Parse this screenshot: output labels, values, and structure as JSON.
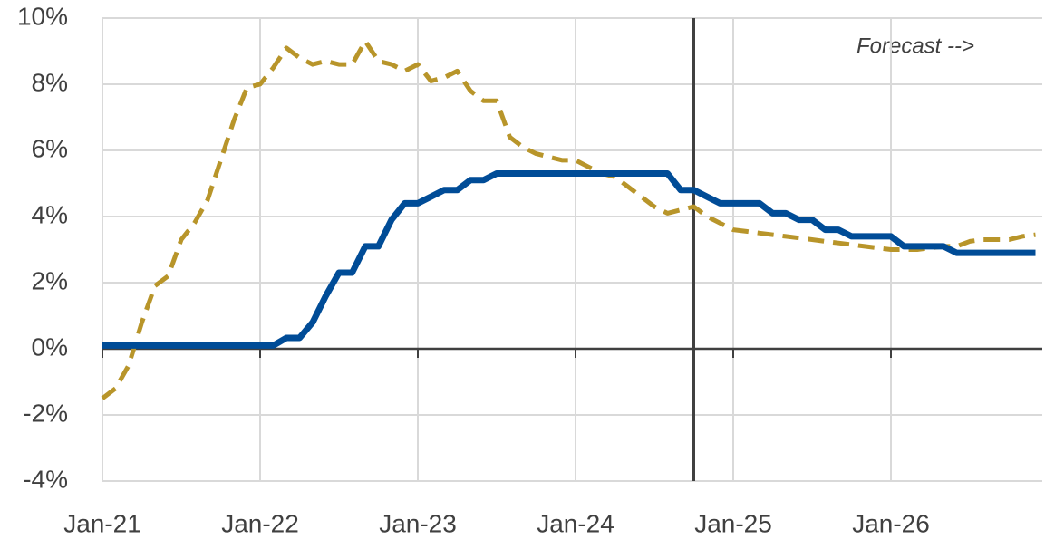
{
  "chart_data": {
    "type": "line",
    "categories": [
      "Jan-21",
      null,
      null,
      null,
      null,
      null,
      null,
      null,
      null,
      null,
      null,
      null,
      "Jan-22",
      null,
      null,
      null,
      null,
      null,
      null,
      null,
      null,
      null,
      null,
      null,
      "Jan-23",
      null,
      null,
      null,
      null,
      null,
      null,
      null,
      null,
      null,
      null,
      null,
      "Jan-24",
      null,
      null,
      null,
      null,
      null,
      null,
      null,
      null,
      null,
      null,
      null,
      "Jan-25",
      null,
      null,
      null,
      null,
      null,
      null,
      null,
      null,
      null,
      null,
      null,
      "Jan-26",
      null,
      null,
      null,
      null,
      null,
      null,
      null,
      null,
      null,
      null,
      null
    ],
    "series": [
      {
        "color": "#004c97",
        "dashed": false,
        "values": [
          0.1,
          0.1,
          0.1,
          0.1,
          0.1,
          0.1,
          0.1,
          0.1,
          0.1,
          0.1,
          0.1,
          0.1,
          0.1,
          0.1,
          0.33,
          0.33,
          0.8,
          1.6,
          2.3,
          2.3,
          3.1,
          3.1,
          3.9,
          4.4,
          4.4,
          4.6,
          4.8,
          4.8,
          5.1,
          5.1,
          5.3,
          5.3,
          5.3,
          5.3,
          5.3,
          5.3,
          5.3,
          5.3,
          5.3,
          5.3,
          5.3,
          5.3,
          5.3,
          5.3,
          4.8,
          4.8,
          4.6,
          4.4,
          4.4,
          4.4,
          4.4,
          4.1,
          4.1,
          3.9,
          3.9,
          3.6,
          3.6,
          3.4,
          3.4,
          3.4,
          3.4,
          3.1,
          3.1,
          3.1,
          3.1,
          2.9,
          2.9,
          2.9,
          2.9,
          2.9,
          2.9,
          2.9
        ]
      },
      {
        "color": "#b8952a",
        "dashed": true,
        "values": [
          -1.5,
          -1.2,
          -0.5,
          0.8,
          1.9,
          2.2,
          3.3,
          3.8,
          4.5,
          5.7,
          6.9,
          7.9,
          8.0,
          8.5,
          9.1,
          8.8,
          8.6,
          8.7,
          8.6,
          8.6,
          9.3,
          8.7,
          8.6,
          8.4,
          8.6,
          8.1,
          8.2,
          8.4,
          7.8,
          7.5,
          7.5,
          6.4,
          6.1,
          5.9,
          5.8,
          5.7,
          5.7,
          5.5,
          5.3,
          5.2,
          4.9,
          4.6,
          4.3,
          4.1,
          4.2,
          4.3,
          4.0,
          3.8,
          3.6,
          3.55,
          3.5,
          3.45,
          3.4,
          3.35,
          3.3,
          3.25,
          3.2,
          3.15,
          3.1,
          3.05,
          3.0,
          3.0,
          3.0,
          3.05,
          3.1,
          3.1,
          3.25,
          3.3,
          3.3,
          3.3,
          3.4,
          3.45
        ]
      }
    ],
    "ylim": [
      -4,
      10
    ],
    "yticks": [
      {
        "value": -4,
        "label": "-4%"
      },
      {
        "value": -2,
        "label": "-2%"
      },
      {
        "value": 0,
        "label": "0%"
      },
      {
        "value": 2,
        "label": "2%"
      },
      {
        "value": 4,
        "label": "4%"
      },
      {
        "value": 6,
        "label": "6%"
      },
      {
        "value": 8,
        "label": "8%"
      },
      {
        "value": 10,
        "label": "10%"
      }
    ],
    "grid": true,
    "forecast_x": 45,
    "annotation": "Forecast -->"
  }
}
